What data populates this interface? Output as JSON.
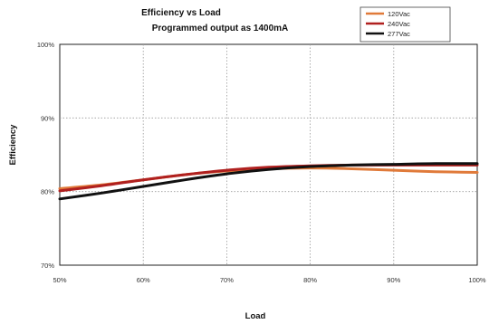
{
  "chart_data": {
    "type": "line",
    "title": "Efficiency vs Load",
    "subtitle": "Programmed output as 1400mA",
    "xlabel": "Load",
    "ylabel": "Efficiency",
    "x_ticks": [
      "50%",
      "60%",
      "70%",
      "80%",
      "90%",
      "100%"
    ],
    "y_ticks": [
      "70%",
      "80%",
      "90%",
      "100%"
    ],
    "xlim": [
      50,
      100
    ],
    "ylim": [
      70,
      100
    ],
    "grid": true,
    "legend_position": "top-right",
    "x": [
      50,
      55,
      60,
      65,
      70,
      75,
      80,
      85,
      90,
      95,
      100
    ],
    "series": [
      {
        "name": "120Vac",
        "color": "#e07a3a",
        "values": [
          80.4,
          80.9,
          81.6,
          82.3,
          82.8,
          83.1,
          83.2,
          83.1,
          82.9,
          82.7,
          82.6
        ]
      },
      {
        "name": "240Vac",
        "color": "#b0201f",
        "values": [
          80.1,
          80.8,
          81.6,
          82.3,
          82.9,
          83.3,
          83.5,
          83.6,
          83.6,
          83.6,
          83.6
        ]
      },
      {
        "name": "277Vac",
        "color": "#111111",
        "values": [
          79.0,
          79.8,
          80.7,
          81.6,
          82.4,
          83.0,
          83.4,
          83.6,
          83.7,
          83.8,
          83.8
        ]
      }
    ]
  }
}
